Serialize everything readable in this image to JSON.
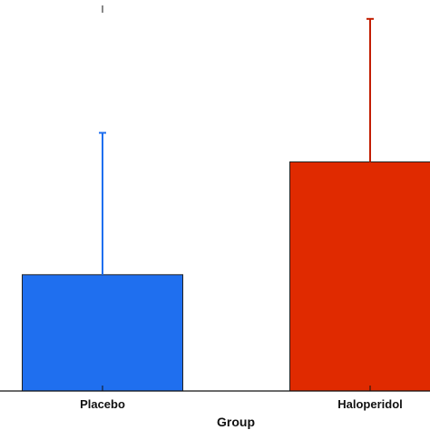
{
  "chart_data": {
    "type": "bar",
    "xlabel": "Group",
    "categories": [
      "Placebo",
      "Haloperidol"
    ],
    "values": [
      1.0,
      1.97
    ],
    "error_upper": [
      2.22,
      3.2
    ],
    "ylim": [
      0,
      3.3
    ],
    "colors": [
      "#1f6fef",
      "#e02a00"
    ],
    "error_colors": [
      "#1f6fef",
      "#c21e00"
    ],
    "grid": false,
    "legend": "none"
  }
}
